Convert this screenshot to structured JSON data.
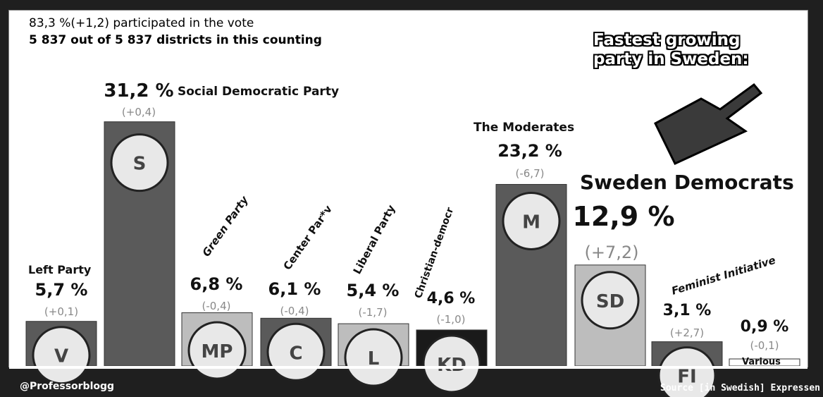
{
  "header": {
    "turnout": "83,3 %(+1,2) participated in the vote",
    "districts": "5 837 out of  5 837 districts in this counting"
  },
  "callout": "Fastest growing party in Sweden:",
  "footer": {
    "left": "@Professorblogg",
    "right": "Source [in Swedish] Expressen"
  },
  "colors": {
    "bar_default": "#5a5a5a",
    "bar_light": "#bdbdbd",
    "bar_dark": "#1a1a1a"
  },
  "chart_data": {
    "type": "bar",
    "title": "",
    "categories": [
      "Left Party",
      "Social Democratic Party",
      "Green Party",
      "Center Par*v",
      "Liberal Party",
      "Christian-democr",
      "The Moderates",
      "Sweden Democrats",
      "Feminist Initiative",
      "Various"
    ],
    "values": [
      5.7,
      31.2,
      6.8,
      6.1,
      5.4,
      4.6,
      23.2,
      12.9,
      3.1,
      0.9
    ],
    "value_labels": [
      "5,7 %",
      "31,2 %",
      "6,8 %",
      "6,1 %",
      "5,4 %",
      "4,6 %",
      "23,2 %",
      "12,9 %",
      "3,1 %",
      "0,9 %"
    ],
    "change_labels": [
      "(+0,1)",
      "(+0,4)",
      "(-0,4)",
      "(-0,4)",
      "(-1,7)",
      "(-1,0)",
      "(-6,7)",
      "(+7,2)",
      "(+2,7)",
      "(-0,1)"
    ],
    "changes": [
      0.1,
      0.4,
      -0.4,
      -0.4,
      -1.7,
      -1.0,
      -6.7,
      7.2,
      2.7,
      -0.1
    ],
    "logos": [
      "V",
      "S",
      "MP",
      "C",
      "L",
      "KD",
      "M",
      "SD",
      "FI",
      ""
    ],
    "ylim": [
      0,
      33
    ],
    "grid": false,
    "legend": "none"
  }
}
